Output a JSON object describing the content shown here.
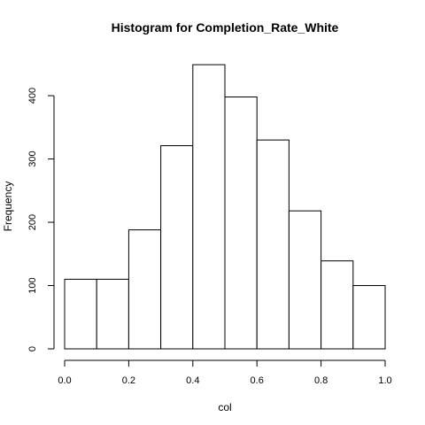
{
  "chart_data": {
    "type": "bar",
    "title": "Histogram for  Completion_Rate_White",
    "xlabel": "col",
    "ylabel": "Frequency",
    "bin_edges": [
      0.0,
      0.1,
      0.2,
      0.3,
      0.4,
      0.5,
      0.6,
      0.7,
      0.8,
      0.9,
      1.0
    ],
    "values": [
      110,
      110,
      188,
      321,
      449,
      398,
      330,
      218,
      139,
      100
    ],
    "xlim": [
      0.0,
      1.0
    ],
    "ylim": [
      0,
      450
    ],
    "x_ticks": [
      0.0,
      0.2,
      0.4,
      0.6,
      0.8,
      1.0
    ],
    "x_tick_labels": [
      "0.0",
      "0.2",
      "0.4",
      "0.6",
      "0.8",
      "1.0"
    ],
    "y_ticks": [
      0,
      100,
      200,
      300,
      400
    ],
    "y_tick_labels": [
      "0",
      "100",
      "200",
      "300",
      "400"
    ],
    "grid": false,
    "bar_fill": "#ffffff",
    "bar_stroke": "#000000"
  }
}
